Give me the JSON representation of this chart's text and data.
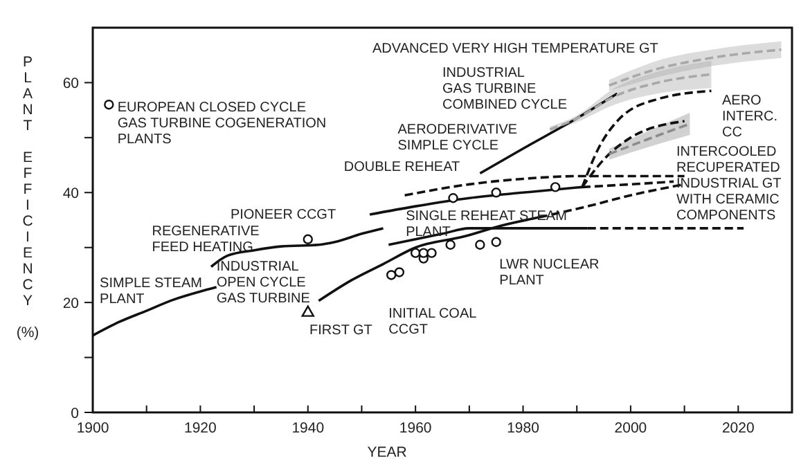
{
  "chart_data": {
    "type": "line",
    "xlabel": "YEAR",
    "ylabel": "PLANT EFFICIENCY (%)",
    "xlim": [
      1900,
      2030
    ],
    "xticks": [
      1900,
      {
        "value": 1910,
        "label": null
      },
      1920,
      {
        "value": 1930,
        "label": null
      },
      1940,
      {
        "value": 1950,
        "label": null
      },
      1960,
      {
        "value": 1970,
        "label": null
      },
      1980,
      {
        "value": 1990,
        "label": null
      },
      2000,
      {
        "value": 2010,
        "label": null
      },
      2020
    ],
    "ylim": [
      0,
      70
    ],
    "yticks": [
      0,
      {
        "value": 10,
        "label": null
      },
      20,
      {
        "value": 30,
        "label": null
      },
      40,
      {
        "value": 50,
        "label": null
      },
      60
    ],
    "grid": false,
    "marker": "none",
    "series": [
      {
        "color": "#111111",
        "line_style": "solid",
        "x": [
          1900,
          1905,
          1910,
          1915,
          1920,
          1923
        ],
        "values": [
          14,
          16.5,
          18.5,
          20.5,
          22,
          22.8
        ]
      },
      {
        "color": "#111111",
        "line_style": "solid",
        "x": [
          1922,
          1925,
          1930,
          1935,
          1942,
          1945,
          1950,
          1954
        ],
        "values": [
          26.5,
          28.5,
          29.5,
          30.2,
          30.5,
          31,
          32.5,
          33.5
        ]
      },
      {
        "color": "#111111",
        "line_style": "solid",
        "x": [
          1951.5,
          1960,
          1970,
          1980,
          1991
        ],
        "values": [
          36,
          37.5,
          39,
          40,
          41
        ]
      },
      {
        "color": "#111111",
        "line_style": "dashed",
        "x": [
          1991,
          2000,
          2008
        ],
        "values": [
          41,
          41.5,
          42
        ]
      },
      {
        "color": "#111111",
        "line_style": "dashed",
        "x": [
          1958,
          1970,
          1980,
          1991,
          2010
        ],
        "values": [
          39.5,
          41.5,
          42.5,
          43,
          43
        ]
      },
      {
        "color": "#111111",
        "line_style": "solid",
        "x": [
          1942,
          1948,
          1954,
          1960,
          1969,
          1976,
          1983
        ],
        "values": [
          20.3,
          24,
          27,
          30,
          32,
          34,
          35.5
        ]
      },
      {
        "color": "#111111",
        "line_style": "dashed",
        "x": [
          1983,
          1992,
          2000,
          2010
        ],
        "values": [
          35.5,
          37.5,
          39.5,
          41.5
        ]
      },
      {
        "color": "#111111",
        "line_style": "solid",
        "x": [
          1955,
          1965,
          1970,
          1992
        ],
        "values": [
          30.5,
          32.5,
          33.5,
          33.5
        ]
      },
      {
        "color": "#111111",
        "line_style": "dashed",
        "x": [
          1992,
          2021
        ],
        "values": [
          33.5,
          33.5
        ]
      },
      {
        "color": "#111111",
        "line_style": "solid",
        "x": [
          1972,
          1980,
          1990,
          1997.5
        ],
        "values": [
          43.5,
          48,
          53.5,
          58
        ]
      },
      {
        "color": "#a8a8a8",
        "line_style": "dashed",
        "x": [
          1985,
          1990,
          1997,
          2005,
          2015
        ],
        "values": [
          51.5,
          53.5,
          57.5,
          60,
          61.5
        ],
        "lower": [
          51,
          52.8,
          56,
          58,
          59
        ],
        "upper": [
          52,
          54,
          59,
          62,
          64
        ]
      },
      {
        "color": "#a8a8a8",
        "line_style": "dashed",
        "x": [
          1996,
          2005,
          2015,
          2028
        ],
        "values": [
          59.5,
          62.5,
          64.5,
          66
        ],
        "lower": [
          58.5,
          61,
          63,
          64.5
        ],
        "upper": [
          60.5,
          64,
          66,
          67.5
        ]
      },
      {
        "color": "#111111",
        "line_style": "dashed",
        "x": [
          1991,
          1994,
          1998,
          2005,
          2015
        ],
        "values": [
          41,
          48,
          53.5,
          57,
          58.5
        ]
      },
      {
        "color": "#111111",
        "line_style": "dashed",
        "x": [
          1991,
          1995,
          2000,
          2010
        ],
        "values": [
          41,
          46,
          50,
          53
        ]
      },
      {
        "color": "#8c8c8c",
        "line_style": "dashed",
        "x": [
          1996,
          2004,
          2011
        ],
        "values": [
          47,
          50,
          52.5
        ],
        "lower": [
          46,
          48.5,
          50.5
        ],
        "upper": [
          48,
          51.5,
          54.5
        ]
      },
      {
        "type": "scatter",
        "color": "#111111",
        "marker": "circle",
        "x": [
          1903
        ],
        "values": [
          56
        ]
      },
      {
        "type": "scatter",
        "color": "#111111",
        "marker": "circle",
        "x": [
          1940
        ],
        "values": [
          31.5
        ]
      },
      {
        "type": "scatter",
        "color": "#111111",
        "marker": "circle",
        "x": [
          1967,
          1975,
          1986
        ],
        "values": [
          39,
          40,
          41
        ]
      },
      {
        "type": "scatter",
        "color": "#111111",
        "marker": "circle",
        "x": [
          1955.5,
          1957,
          1960,
          1961.5,
          1961.5,
          1963,
          1966.5,
          1972,
          1975
        ],
        "values": [
          25,
          25.5,
          29,
          28,
          29,
          29,
          30.5,
          30.5,
          31
        ]
      },
      {
        "type": "scatter",
        "color": "#111111",
        "marker": "triangle",
        "x": [
          1940
        ],
        "values": [
          18.3
        ]
      }
    ],
    "annotations": [
      "EUROPEAN CLOSED CYCLE\nGAS TURBINE COGENERATION\nPLANTS",
      "ADVANCED VERY HIGH TEMPERATURE GT",
      "INDUSTRIAL\nGAS TURBINE\nCOMBINED CYCLE",
      "AERODERIVATIVE\nSIMPLE CYCLE",
      "DOUBLE REHEAT",
      "PIONEER CCGT",
      "SINGLE REHEAT STEAM\nPLANT",
      "REGENERATIVE\nFEED HEATING",
      "INDUSTRIAL\nOPEN CYCLE\nGAS TURBINE",
      "SIMPLE STEAM\nPLANT",
      "FIRST GT",
      "INITIAL COAL\nCCGT",
      "LWR NUCLEAR\nPLANT",
      "AERO\nINTERC.\nCC",
      "INTERCOOLED\nRECUPERATED\nINDUSTRIAL GT\nWITH CERAMIC\nCOMPONENTS"
    ]
  }
}
